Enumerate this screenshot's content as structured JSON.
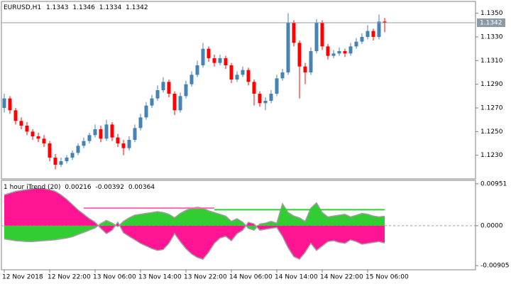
{
  "chart_data": [
    {
      "type": "candlestick",
      "title": "EURUSD,H1",
      "up_color": "#4682b4",
      "down_color": "#ff0000",
      "categories": [
        "12 Nov 2018",
        null,
        null,
        null,
        null,
        null,
        null,
        null,
        "12 Nov 22:00",
        null,
        null,
        null,
        null,
        null,
        null,
        null,
        "13 Nov 06:00",
        null,
        null,
        null,
        null,
        null,
        null,
        null,
        "13 Nov 14:00",
        null,
        null,
        null,
        null,
        null,
        null,
        null,
        "13 Nov 22:00",
        null,
        null,
        null,
        null,
        null,
        null,
        null,
        "14 Nov 06:00",
        null,
        null,
        null,
        null,
        null,
        null,
        null,
        "14 Nov 14:00",
        null,
        null,
        null,
        null,
        null,
        null,
        null,
        "14 Nov 22:00",
        null,
        null,
        null,
        null,
        null,
        null,
        null,
        "15 Nov 06:00",
        null,
        null,
        null
      ],
      "ohlc": [
        [
          1.127,
          1.1282,
          1.1266,
          1.1278
        ],
        [
          1.1278,
          1.128,
          1.1265,
          1.1268
        ],
        [
          1.1268,
          1.127,
          1.1256,
          1.1259
        ],
        [
          1.1259,
          1.1262,
          1.1252,
          1.1255
        ],
        [
          1.1255,
          1.1258,
          1.1247,
          1.125
        ],
        [
          1.125,
          1.1252,
          1.1243,
          1.1246
        ],
        [
          1.1246,
          1.1249,
          1.1241,
          1.1244
        ],
        [
          1.1244,
          1.1247,
          1.1237,
          1.124
        ],
        [
          1.124,
          1.1242,
          1.1225,
          1.1228
        ],
        [
          1.1228,
          1.1231,
          1.1218,
          1.1222
        ],
        [
          1.1222,
          1.1228,
          1.122,
          1.1225
        ],
        [
          1.1225,
          1.123,
          1.1223,
          1.1228
        ],
        [
          1.1228,
          1.1234,
          1.1226,
          1.1232
        ],
        [
          1.1232,
          1.124,
          1.123,
          1.1238
        ],
        [
          1.1238,
          1.1245,
          1.1236,
          1.1242
        ],
        [
          1.1242,
          1.1249,
          1.124,
          1.1247
        ],
        [
          1.1247,
          1.1256,
          1.1245,
          1.1252
        ],
        [
          1.1252,
          1.1255,
          1.1241,
          1.1244
        ],
        [
          1.1244,
          1.126,
          1.1242,
          1.1256
        ],
        [
          1.1256,
          1.1258,
          1.1242,
          1.1245
        ],
        [
          1.1245,
          1.1248,
          1.1237,
          1.124
        ],
        [
          1.124,
          1.1243,
          1.123,
          1.1236
        ],
        [
          1.1236,
          1.1246,
          1.1234,
          1.1243
        ],
        [
          1.1243,
          1.1256,
          1.1241,
          1.1253
        ],
        [
          1.1253,
          1.1265,
          1.1251,
          1.1262
        ],
        [
          1.1262,
          1.1275,
          1.126,
          1.1272
        ],
        [
          1.1272,
          1.1281,
          1.127,
          1.1278
        ],
        [
          1.1278,
          1.1289,
          1.1276,
          1.1285
        ],
        [
          1.1285,
          1.1296,
          1.1283,
          1.1292
        ],
        [
          1.1292,
          1.1294,
          1.1279,
          1.1282
        ],
        [
          1.1282,
          1.1284,
          1.1264,
          1.1268
        ],
        [
          1.1268,
          1.1283,
          1.1266,
          1.128
        ],
        [
          1.128,
          1.1293,
          1.1278,
          1.129
        ],
        [
          1.129,
          1.1301,
          1.1288,
          1.1298
        ],
        [
          1.1298,
          1.131,
          1.1296,
          1.1306
        ],
        [
          1.1306,
          1.1325,
          1.1304,
          1.132
        ],
        [
          1.132,
          1.1322,
          1.1309,
          1.1312
        ],
        [
          1.1312,
          1.1315,
          1.1305,
          1.1308
        ],
        [
          1.1308,
          1.1315,
          1.1306,
          1.1312
        ],
        [
          1.1312,
          1.1314,
          1.1303,
          1.1306
        ],
        [
          1.1306,
          1.1308,
          1.1291,
          1.1294
        ],
        [
          1.1294,
          1.1301,
          1.1292,
          1.1298
        ],
        [
          1.1298,
          1.1305,
          1.1296,
          1.1302
        ],
        [
          1.1302,
          1.1304,
          1.1289,
          1.1292
        ],
        [
          1.1292,
          1.1294,
          1.1272,
          1.1282
        ],
        [
          1.1282,
          1.1284,
          1.1271,
          1.1274
        ],
        [
          1.1274,
          1.1279,
          1.1268,
          1.1276
        ],
        [
          1.1276,
          1.1285,
          1.1274,
          1.1282
        ],
        [
          1.1282,
          1.1298,
          1.128,
          1.1295
        ],
        [
          1.1295,
          1.1303,
          1.1293,
          1.13
        ],
        [
          1.13,
          1.135,
          1.1298,
          1.1342
        ],
        [
          1.1342,
          1.1344,
          1.1322,
          1.1325
        ],
        [
          1.1325,
          1.1327,
          1.1278,
          1.1305
        ],
        [
          1.1305,
          1.1308,
          1.129,
          1.13
        ],
        [
          1.13,
          1.1321,
          1.1298,
          1.1318
        ],
        [
          1.1318,
          1.1345,
          1.1316,
          1.1342
        ],
        [
          1.1342,
          1.1344,
          1.1319,
          1.1322
        ],
        [
          1.1322,
          1.1324,
          1.1311,
          1.1314
        ],
        [
          1.1314,
          1.1319,
          1.1312,
          1.1316
        ],
        [
          1.1316,
          1.1321,
          1.1314,
          1.1318
        ],
        [
          1.1318,
          1.132,
          1.1313,
          1.1316
        ],
        [
          1.1316,
          1.1325,
          1.1314,
          1.1322
        ],
        [
          1.1322,
          1.1329,
          1.132,
          1.1326
        ],
        [
          1.1326,
          1.1333,
          1.1324,
          1.133
        ],
        [
          1.133,
          1.134,
          1.1328,
          1.1335
        ],
        [
          1.1335,
          1.1337,
          1.1327,
          1.133
        ],
        [
          1.133,
          1.1349,
          1.1328,
          1.1343
        ],
        [
          1.1343,
          1.1346,
          1.1334,
          1.1342
        ]
      ],
      "ylim": [
        1.121,
        1.136
      ],
      "yticks": [
        {
          "value": 1.135,
          "label": "1.1350"
        },
        {
          "value": 1.133,
          "label": "1.1330"
        },
        {
          "value": 1.131,
          "label": "1.1310"
        },
        {
          "value": 1.129,
          "label": "1.1290"
        },
        {
          "value": 1.127,
          "label": "1.1270"
        },
        {
          "value": 1.125,
          "label": "1.1250"
        },
        {
          "value": 1.123,
          "label": "1.1230"
        }
      ]
    },
    {
      "type": "area",
      "title": "1 hour iTrend (20)",
      "y2lim": [
        -0.01,
        0.0103
      ],
      "y2ticks": [
        0.00951,
        {
          "value": 0,
          "label": "0.0000"
        },
        -0.00905
      ],
      "series": [
        {
          "kind": "area",
          "color": "#32cd32",
          "values": [
            -0.003,
            -0.0032,
            -0.0034,
            -0.0035,
            -0.0036,
            -0.0036,
            -0.0035,
            -0.0034,
            -0.0033,
            -0.0032,
            -0.003,
            -0.0028,
            -0.0025,
            -0.002,
            -0.0015,
            -0.001,
            -0.0005,
            0.0005,
            0.0012,
            0.0006,
            -0.0002,
            0.001,
            0.0018,
            0.0024,
            0.0026,
            0.0028,
            0.003,
            0.0032,
            0.003,
            0.0026,
            0.0018,
            0.0028,
            0.0035,
            0.004,
            0.0042,
            0.004,
            0.0034,
            0.003,
            0.0026,
            0.0022,
            0.001,
            0.0016,
            0.0008,
            -0.0006,
            -0.001,
            0.0004,
            0.0006,
            0.001,
            0.0006,
            0.005,
            0.003,
            0.0022,
            0.0018,
            0.001,
            0.004,
            0.0052,
            0.003,
            0.002,
            0.0022,
            0.0024,
            0.0026,
            0.002,
            0.0024,
            0.0028,
            0.0026,
            0.0022,
            0.002,
            0.00216
          ]
        },
        {
          "kind": "area",
          "color": "#ff1493",
          "values": [
            0.007,
            0.0074,
            0.0078,
            0.008,
            0.0082,
            0.0084,
            0.0085,
            0.0084,
            0.0082,
            0.0078,
            0.007,
            0.006,
            0.0048,
            0.0036,
            0.0026,
            0.0016,
            0.0008,
            -0.0006,
            -0.0018,
            -0.001,
            0.0008,
            -0.0016,
            -0.0024,
            -0.0032,
            -0.004,
            -0.0046,
            -0.0052,
            -0.0056,
            -0.0054,
            -0.004,
            -0.0018,
            -0.0036,
            -0.0052,
            -0.0064,
            -0.0072,
            -0.0076,
            -0.006,
            -0.004,
            -0.0028,
            -0.0024,
            -0.0034,
            -0.0018,
            -0.001,
            0.0008,
            0.0004,
            -0.001,
            -0.0008,
            -0.0006,
            -0.0004,
            -0.0024,
            -0.005,
            -0.007,
            -0.0076,
            -0.006,
            -0.004,
            -0.0056,
            -0.0046,
            -0.0036,
            -0.0034,
            -0.0038,
            -0.004,
            -0.0032,
            -0.0036,
            -0.0042,
            -0.004,
            -0.0038,
            -0.0036,
            -0.00392
          ]
        },
        {
          "kind": "line",
          "color": "#32cd32",
          "values": [
            null,
            null,
            null,
            null,
            null,
            null,
            null,
            null,
            null,
            null,
            null,
            null,
            null,
            null,
            null,
            null,
            null,
            null,
            null,
            null,
            null,
            null,
            null,
            null,
            null,
            null,
            null,
            null,
            null,
            null,
            null,
            null,
            null,
            null,
            null,
            null,
            null,
            0.00364,
            0.00364,
            0.00364,
            0.00364,
            0.00364,
            0.00364,
            0.00364,
            0.00364,
            0.00364,
            0.00364,
            0.00364,
            0.00364,
            0.00364,
            0.00364,
            0.00364,
            0.00364,
            0.00364,
            0.00364,
            0.00364,
            0.00364,
            0.00364,
            0.00364,
            0.00364,
            0.00364,
            0.00364,
            0.00364,
            0.00364,
            0.00364,
            0.00364,
            0.00364,
            0.00364
          ]
        },
        {
          "kind": "line",
          "color": "#ff69b4",
          "values": [
            null,
            null,
            null,
            null,
            null,
            null,
            null,
            null,
            null,
            null,
            null,
            null,
            null,
            null,
            0.004,
            0.004,
            0.004,
            0.004,
            0.004,
            0.004,
            0.004,
            0.004,
            0.004,
            0.004,
            0.004,
            0.004,
            0.004,
            0.004,
            0.004,
            0.004,
            0.004,
            0.004,
            0.004,
            0.004,
            0.004,
            0.004,
            0.004,
            0.004,
            null,
            null,
            null,
            null,
            null,
            null,
            null,
            null,
            null,
            null,
            null,
            null,
            null,
            null,
            null,
            null,
            null,
            null,
            null,
            null,
            null,
            null,
            null,
            null,
            null,
            null,
            null,
            null,
            null,
            null
          ]
        }
      ]
    }
  ]
}
